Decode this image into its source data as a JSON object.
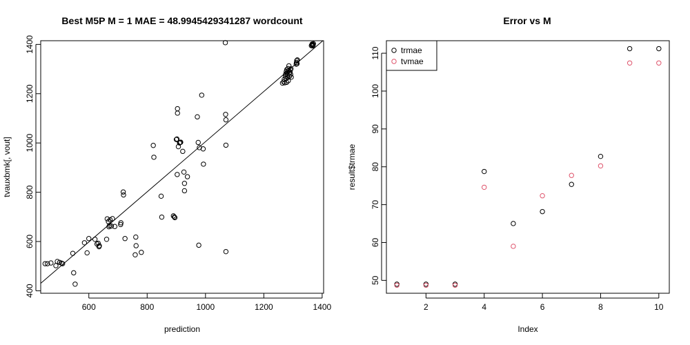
{
  "chart_data": [
    {
      "type": "scatter",
      "title": "Best M5P M = 1 MAE = 48.9945429341287 wordcount",
      "xlabel": "prediction",
      "ylabel": "tvauxbmk[, vout]",
      "xlim": [
        435,
        1405
      ],
      "ylim": [
        390,
        1415
      ],
      "xticks": [
        600,
        800,
        1000,
        1200,
        1400
      ],
      "yticks": [
        400,
        600,
        800,
        1000,
        1200,
        1400
      ],
      "reference_line": {
        "intercept": -12.7,
        "slope": 1.018
      },
      "point_color": "#000000",
      "points": [
        [
          450,
          510
        ],
        [
          458,
          510
        ],
        [
          470,
          513
        ],
        [
          487,
          502
        ],
        [
          492,
          519
        ],
        [
          500,
          515
        ],
        [
          507,
          512
        ],
        [
          510,
          510
        ],
        [
          545,
          552
        ],
        [
          548,
          473
        ],
        [
          553,
          427
        ],
        [
          585,
          595
        ],
        [
          594,
          554
        ],
        [
          600,
          612
        ],
        [
          621,
          609
        ],
        [
          628,
          590
        ],
        [
          632,
          593
        ],
        [
          635,
          579
        ],
        [
          636,
          583
        ],
        [
          661,
          609
        ],
        [
          663,
          692
        ],
        [
          667,
          681
        ],
        [
          669,
          660
        ],
        [
          671,
          665
        ],
        [
          673,
          688
        ],
        [
          677,
          663
        ],
        [
          681,
          693
        ],
        [
          689,
          661
        ],
        [
          709,
          669
        ],
        [
          710,
          676
        ],
        [
          718,
          801
        ],
        [
          719,
          789
        ],
        [
          724,
          612
        ],
        [
          759,
          546
        ],
        [
          761,
          618
        ],
        [
          762,
          583
        ],
        [
          780,
          556
        ],
        [
          821,
          990
        ],
        [
          823,
          942
        ],
        [
          848,
          784
        ],
        [
          850,
          699
        ],
        [
          890,
          704
        ],
        [
          893,
          700
        ],
        [
          895,
          697
        ],
        [
          900,
          1014
        ],
        [
          902,
          1016
        ],
        [
          903,
          872
        ],
        [
          904,
          1139
        ],
        [
          904,
          1121
        ],
        [
          907,
          985
        ],
        [
          911,
          1000
        ],
        [
          913,
          1002
        ],
        [
          915,
          1003
        ],
        [
          922,
          966
        ],
        [
          926,
          882
        ],
        [
          928,
          836
        ],
        [
          928,
          806
        ],
        [
          938,
          863
        ],
        [
          972,
          1106
        ],
        [
          975,
          1002
        ],
        [
          977,
          585
        ],
        [
          979,
          981
        ],
        [
          987,
          1194
        ],
        [
          992,
          976
        ],
        [
          993,
          914
        ],
        [
          1068,
          1407
        ],
        [
          1069,
          1116
        ],
        [
          1070,
          1094
        ],
        [
          1070,
          991
        ],
        [
          1070,
          559
        ],
        [
          1264,
          1243
        ],
        [
          1268,
          1248
        ],
        [
          1270,
          1258
        ],
        [
          1272,
          1244
        ],
        [
          1274,
          1270
        ],
        [
          1275,
          1280
        ],
        [
          1276,
          1262
        ],
        [
          1277,
          1290
        ],
        [
          1278,
          1246
        ],
        [
          1279,
          1298
        ],
        [
          1280,
          1285
        ],
        [
          1281,
          1276
        ],
        [
          1282,
          1266
        ],
        [
          1283,
          1302
        ],
        [
          1284,
          1253
        ],
        [
          1285,
          1294
        ],
        [
          1286,
          1313
        ],
        [
          1287,
          1282
        ],
        [
          1288,
          1271
        ],
        [
          1290,
          1288
        ],
        [
          1291,
          1297
        ],
        [
          1292,
          1278
        ],
        [
          1293,
          1301
        ],
        [
          1294,
          1267
        ],
        [
          1311,
          1320
        ],
        [
          1312,
          1327
        ],
        [
          1313,
          1334
        ],
        [
          1314,
          1322
        ],
        [
          1315,
          1337
        ],
        [
          1363,
          1395
        ],
        [
          1365,
          1399
        ],
        [
          1366,
          1402
        ],
        [
          1367,
          1394
        ],
        [
          1368,
          1400
        ],
        [
          1369,
          1397
        ],
        [
          1370,
          1403
        ]
      ]
    },
    {
      "type": "scatter",
      "title": "Error vs M",
      "xlabel": "Index",
      "ylabel": "result$trmae",
      "xlim": [
        0.64,
        10.36
      ],
      "ylim": [
        46.6,
        113.3
      ],
      "xticks": [
        2,
        4,
        6,
        8,
        10
      ],
      "yticks": [
        50,
        60,
        70,
        80,
        90,
        100,
        110
      ],
      "legend": {
        "position": "top-left"
      },
      "series": [
        {
          "name": "trmae",
          "color": "#000000",
          "x": [
            1,
            2,
            3,
            4,
            5,
            6,
            7,
            8,
            9,
            10
          ],
          "values": [
            48.99,
            48.99,
            48.99,
            78.76,
            65.01,
            68.17,
            75.35,
            82.74,
            111.2,
            111.2
          ]
        },
        {
          "name": "tvmae",
          "color": "#df536b",
          "x": [
            1,
            2,
            3,
            4,
            5,
            6,
            7,
            8,
            9,
            10
          ],
          "values": [
            48.71,
            48.71,
            48.71,
            74.59,
            59.0,
            72.35,
            77.72,
            80.24,
            107.42,
            107.42
          ]
        }
      ]
    }
  ]
}
